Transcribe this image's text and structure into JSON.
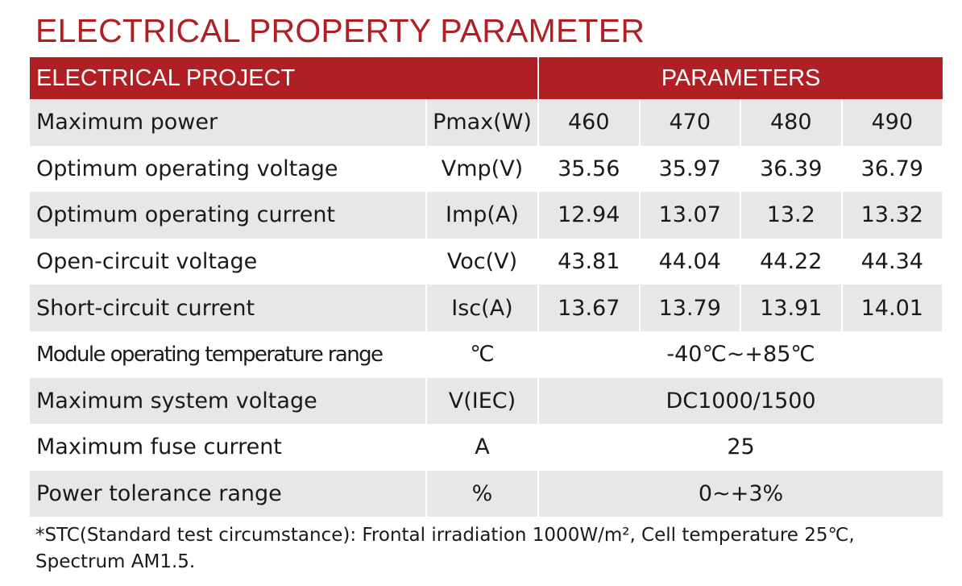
{
  "title": "ELECTRICAL PROPERTY PARAMETER",
  "header": {
    "project": "ELECTRICAL PROJECT",
    "parameters": "PARAMETERS"
  },
  "rows": [
    {
      "name": "Maximum power",
      "unit": "Pmax(W)",
      "values": [
        "460",
        "470",
        "480",
        "490"
      ]
    },
    {
      "name": "Optimum operating voltage",
      "unit": "Vmp(V)",
      "values": [
        "35.56",
        "35.97",
        "36.39",
        "36.79"
      ]
    },
    {
      "name": "Optimum operating current",
      "unit": "Imp(A)",
      "values": [
        "12.94",
        "13.07",
        "13.2",
        "13.32"
      ]
    },
    {
      "name": "Open-circuit voltage",
      "unit": "Voc(V)",
      "values": [
        "43.81",
        "44.04",
        "44.22",
        "44.34"
      ]
    },
    {
      "name": "Short-circuit current",
      "unit": "Isc(A)",
      "values": [
        "13.67",
        "13.79",
        "13.91",
        "14.01"
      ]
    }
  ],
  "span_rows": [
    {
      "name": "Module operating temperature range",
      "unit": "℃",
      "value": "-40℃~+85℃"
    },
    {
      "name": "Maximum system voltage",
      "unit": "V(IEC)",
      "value": "DC1000/1500"
    },
    {
      "name": "Maximum fuse current",
      "unit": "A",
      "value": "25"
    },
    {
      "name": "Power tolerance range",
      "unit": "%",
      "value": "0~+3%"
    }
  ],
  "footnote": "*STC(Standard test circumstance): Frontal irradiation 1000W/m², Cell temperature 25℃, Spectrum AM1.5.",
  "colors": {
    "accent": "#b01f24",
    "row_shade": "#e7e7e7"
  }
}
